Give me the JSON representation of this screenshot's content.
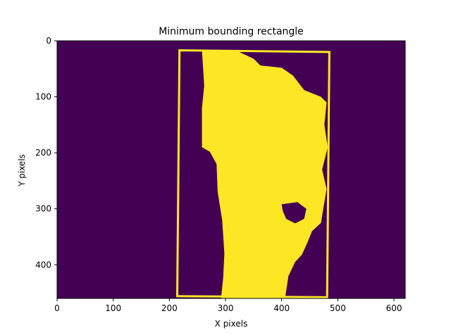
{
  "chart_data": {
    "type": "heatmap",
    "title": "Minimum bounding rectangle",
    "xlabel": "X pixels",
    "ylabel": "Y pixels",
    "xlim": [
      0,
      620
    ],
    "ylim": [
      460,
      0
    ],
    "y_inverted": true,
    "x_ticks": [
      0,
      100,
      200,
      300,
      400,
      500,
      600
    ],
    "y_ticks": [
      0,
      100,
      200,
      300,
      400
    ],
    "grid": false,
    "colormap": "viridis-binary",
    "colors": {
      "background": "#440154",
      "foreground": "#fde725"
    },
    "mask_region": [
      [
        258,
        17
      ],
      [
        320,
        18
      ],
      [
        350,
        32
      ],
      [
        362,
        44
      ],
      [
        400,
        48
      ],
      [
        420,
        62
      ],
      [
        440,
        88
      ],
      [
        470,
        100
      ],
      [
        480,
        110
      ],
      [
        476,
        150
      ],
      [
        482,
        190
      ],
      [
        472,
        230
      ],
      [
        480,
        265
      ],
      [
        474,
        300
      ],
      [
        470,
        325
      ],
      [
        454,
        340
      ],
      [
        446,
        360
      ],
      [
        436,
        382
      ],
      [
        424,
        395
      ],
      [
        412,
        420
      ],
      [
        406,
        460
      ],
      [
        292,
        460
      ],
      [
        296,
        422
      ],
      [
        298,
        380
      ],
      [
        294,
        320
      ],
      [
        286,
        270
      ],
      [
        284,
        220
      ],
      [
        272,
        198
      ],
      [
        258,
        190
      ],
      [
        258,
        120
      ],
      [
        262,
        80
      ]
    ],
    "hole_region": [
      [
        400,
        292
      ],
      [
        428,
        288
      ],
      [
        444,
        300
      ],
      [
        440,
        318
      ],
      [
        424,
        326
      ],
      [
        408,
        318
      ],
      [
        402,
        304
      ]
    ],
    "bounding_rectangle": [
      [
        218,
        17
      ],
      [
        485,
        20
      ],
      [
        481,
        458
      ],
      [
        214,
        456
      ]
    ]
  }
}
